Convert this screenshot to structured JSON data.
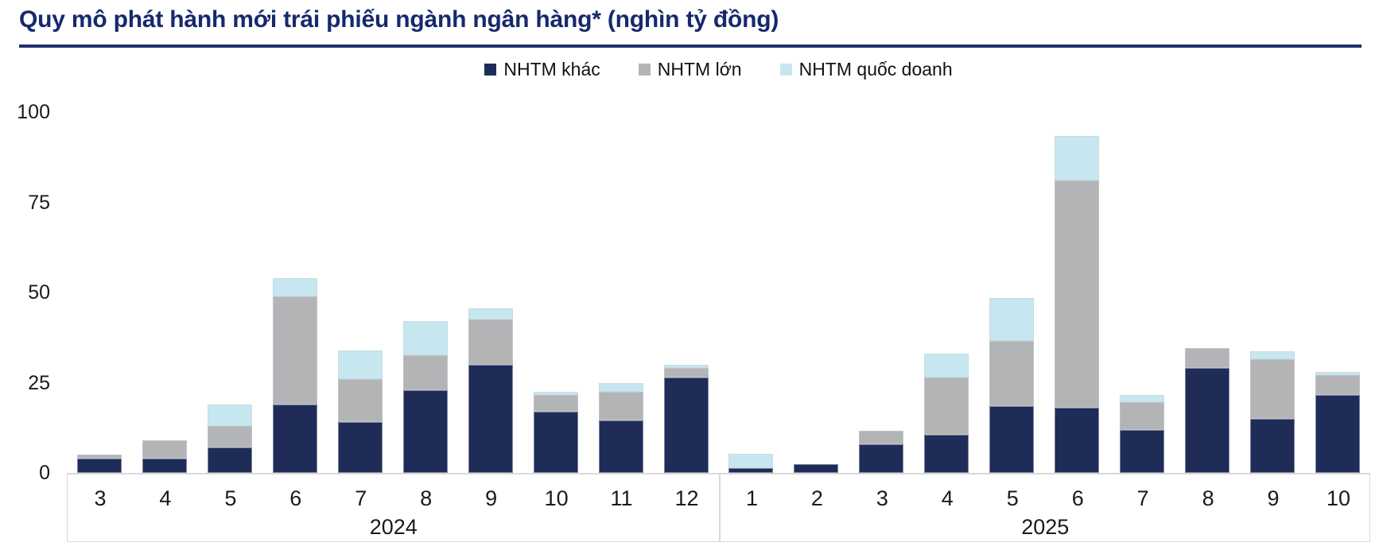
{
  "header": {
    "title": "Quy mô phát hành mới trái phiếu ngành ngân hàng* (nghìn tỷ đồng)"
  },
  "colors": {
    "title_navy": "#16296D",
    "rule_navy": "#1D2F6E",
    "series_navy": "#1F2C58",
    "series_gray": "#B3B4B6",
    "series_lightblue": "#C7E7F0",
    "axis_line_gray": "#D9D9D9"
  },
  "chart_data": {
    "type": "bar",
    "stacked": true,
    "title": "Quy mô phát hành mới trái phiếu ngành ngân hàng* (nghìn tỷ đồng)",
    "ylabel": "nghìn tỷ đồng",
    "ylim": [
      0,
      100
    ],
    "yticks": [
      0,
      25,
      50,
      75,
      100
    ],
    "grid": false,
    "legend_position": "top-center",
    "categories": [
      "3",
      "4",
      "5",
      "6",
      "7",
      "8",
      "9",
      "10",
      "11",
      "12",
      "1",
      "2",
      "3",
      "4",
      "5",
      "6",
      "7",
      "8",
      "9",
      "10"
    ],
    "year_groups": [
      {
        "label": "2024",
        "start": 0,
        "span": 10
      },
      {
        "label": "2025",
        "start": 10,
        "span": 10
      }
    ],
    "series": [
      {
        "name": "NHTM khác",
        "color": "#1F2C58",
        "values": [
          4,
          4,
          7,
          19,
          14,
          23,
          30,
          17,
          14.5,
          26.5,
          1.3,
          2.4,
          8,
          10.5,
          18.5,
          18,
          12,
          29,
          15,
          21.5
        ]
      },
      {
        "name": "NHTM lớn",
        "color": "#B3B4B6",
        "values": [
          1,
          5,
          6,
          30,
          12,
          9.5,
          12.5,
          4.5,
          8,
          2.5,
          0,
          0,
          3.7,
          16,
          18,
          63,
          7.5,
          5.5,
          16.5,
          5.5
        ]
      },
      {
        "name": "NHTM quốc doanh",
        "color": "#C7E7F0",
        "values": [
          0,
          0,
          6,
          5,
          8,
          9.5,
          3,
          1,
          2.5,
          1,
          4,
          0,
          0,
          6.5,
          12,
          12.5,
          2,
          0,
          2.2,
          1
        ]
      }
    ]
  }
}
